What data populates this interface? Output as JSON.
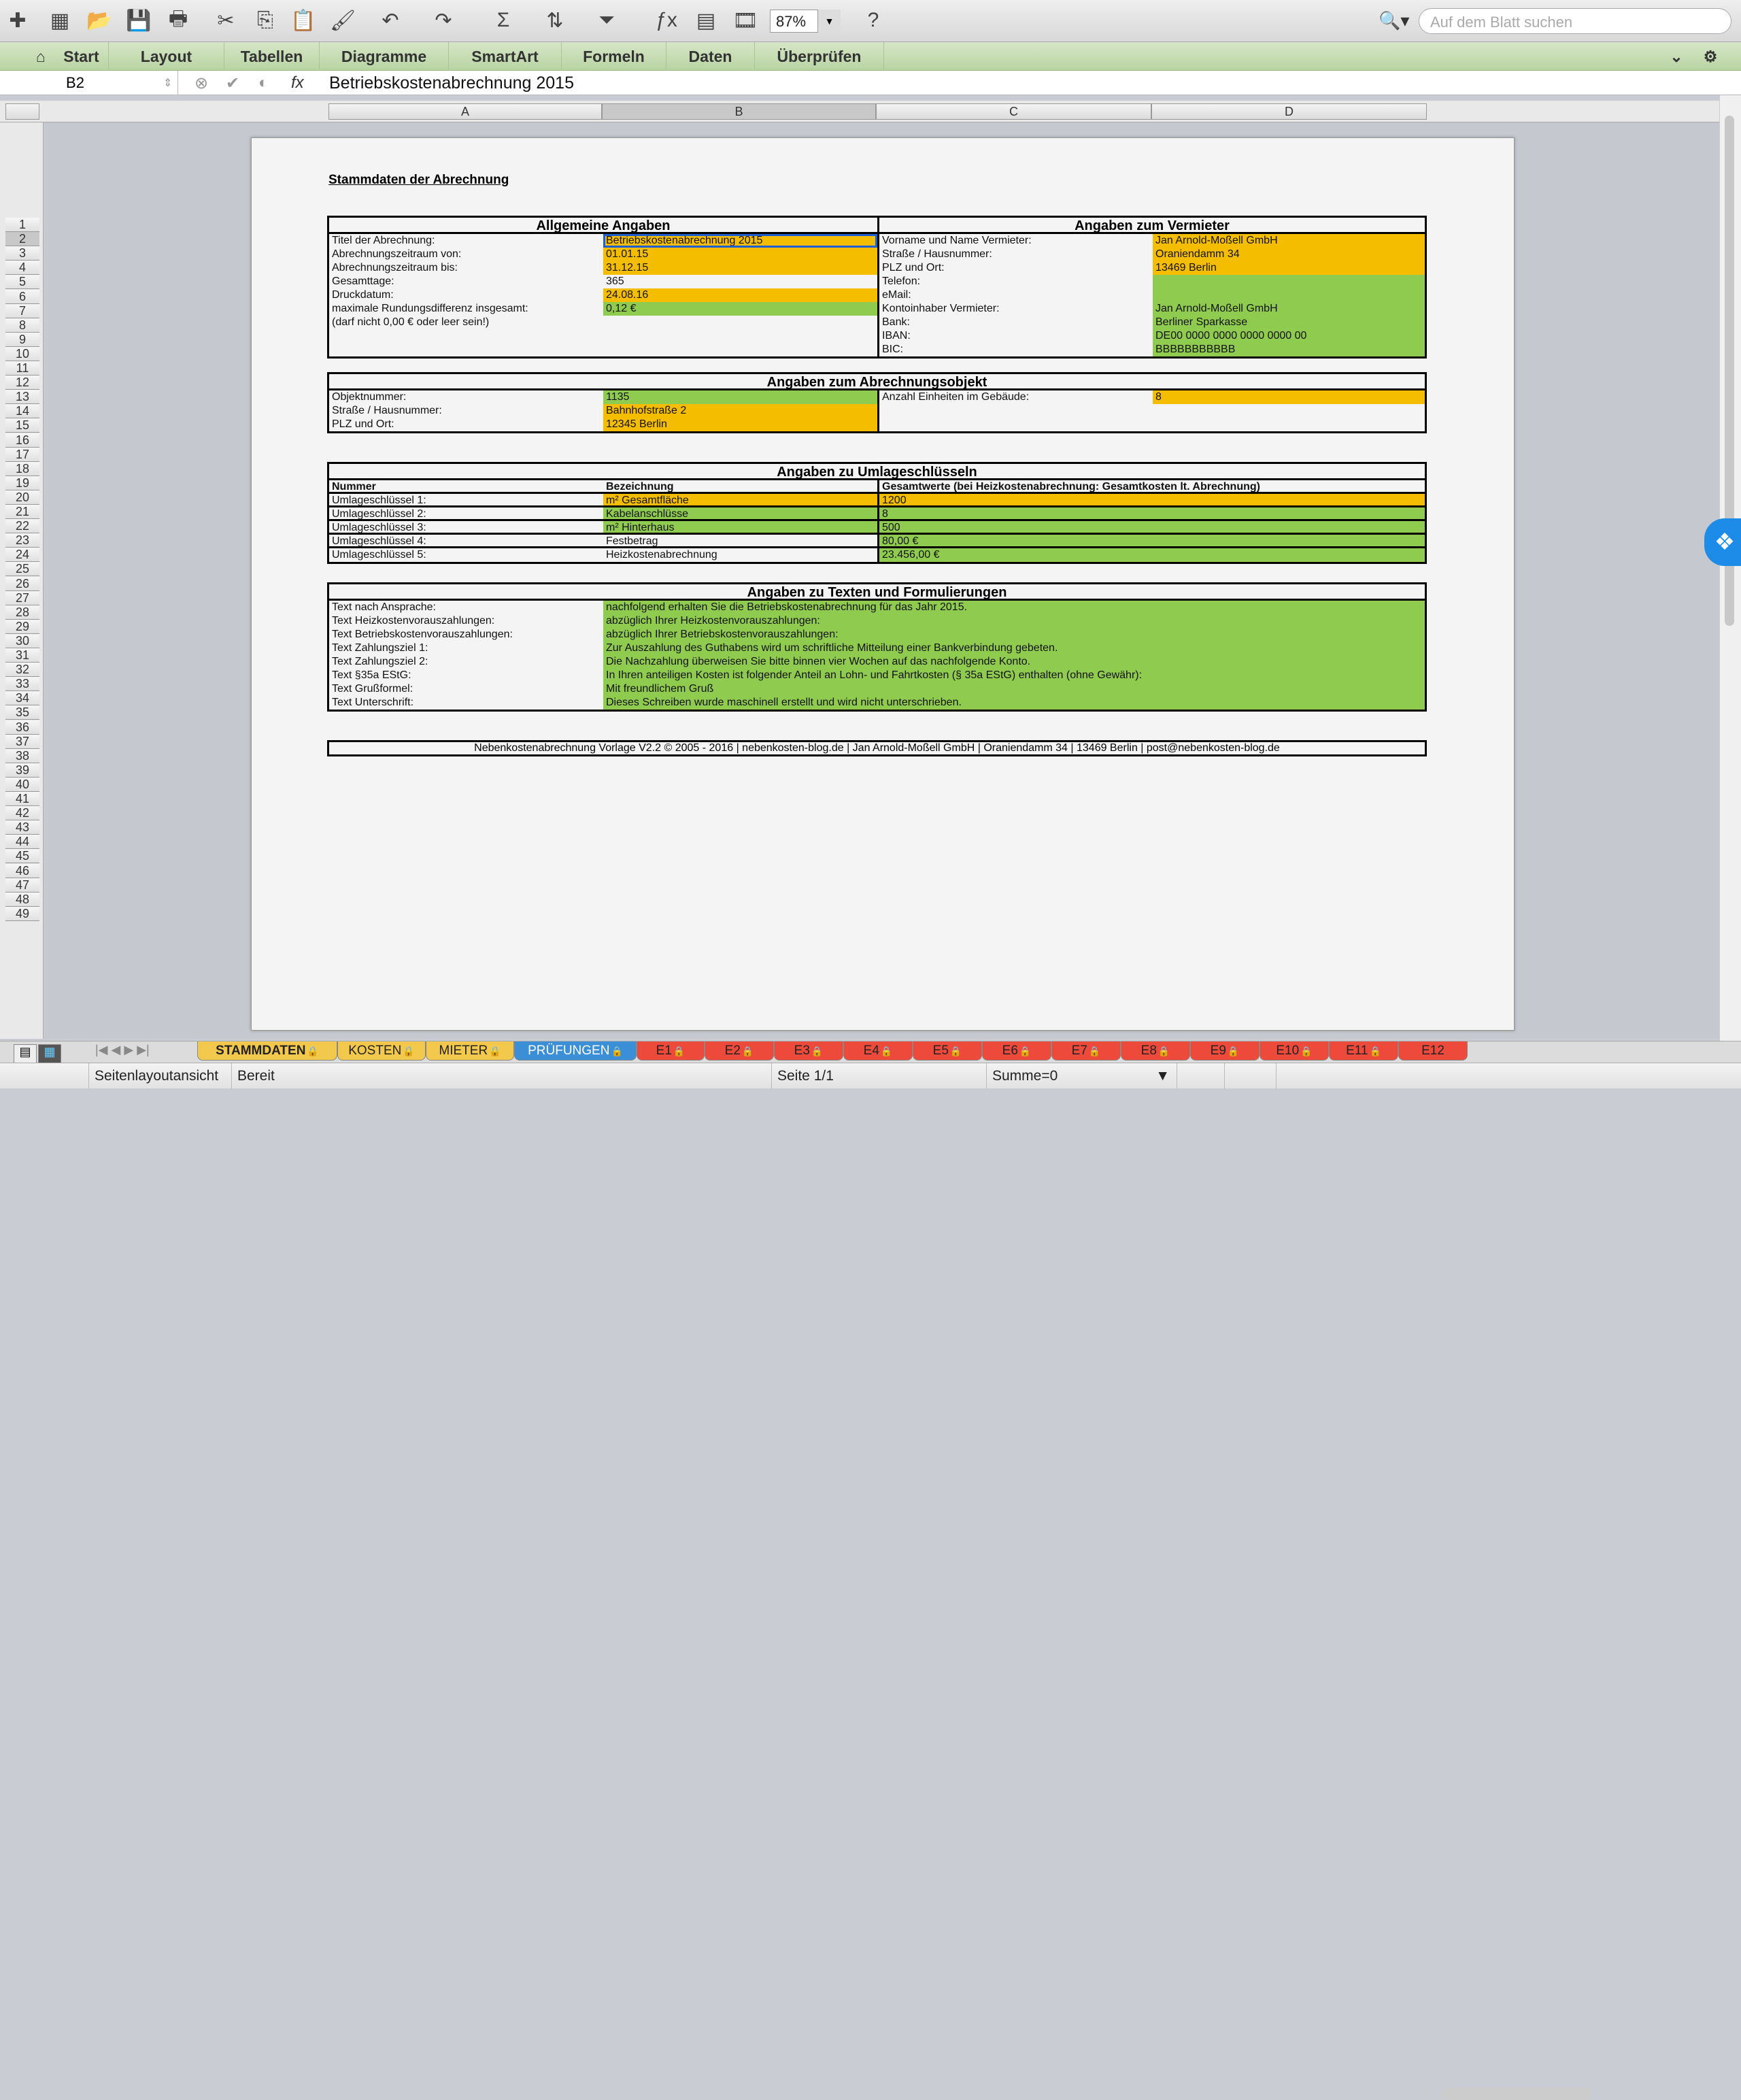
{
  "toolbar": {
    "icons": [
      "new-icon",
      "gallery-icon",
      "open-icon",
      "save-icon",
      "print-icon",
      "cut-icon",
      "copy-icon",
      "paste-icon",
      "format-painter-icon",
      "undo-icon",
      "redo-icon",
      "autosum-icon",
      "sort-icon",
      "filter-icon",
      "function-icon",
      "formula-builder-icon",
      "media-icon",
      "help-icon"
    ],
    "zoom": "87%",
    "search_placeholder": "Auf dem Blatt suchen"
  },
  "ribbon": {
    "tabs": [
      "Start",
      "Layout",
      "Tabellen",
      "Diagramme",
      "SmartArt",
      "Formeln",
      "Daten",
      "Überprüfen"
    ]
  },
  "formula_bar": {
    "cell_ref": "B2",
    "value": "Betriebskostenabrechnung 2015",
    "fx": "fx"
  },
  "columns": [
    "A",
    "B",
    "C",
    "D"
  ],
  "row_numbers": [
    1,
    2,
    3,
    4,
    5,
    6,
    7,
    8,
    9,
    10,
    11,
    12,
    13,
    14,
    15,
    16,
    17,
    18,
    19,
    20,
    21,
    22,
    23,
    24,
    25,
    26,
    27,
    28,
    29,
    30,
    31,
    32,
    33,
    34,
    35,
    36,
    37,
    38,
    39,
    40,
    41,
    42,
    43,
    44,
    45,
    46,
    47,
    48,
    49
  ],
  "colors": {
    "orange": "#f5bd00",
    "green": "#8fcb4e",
    "selection": "#1f5fd0"
  },
  "sheet": {
    "title": "Stammdaten der Abrechnung",
    "sections": [
      {
        "heading_left": "Allgemeine Angaben",
        "heading_right": "Angaben zum Vermieter",
        "rows": [
          [
            {
              "t": "Titel der Abrechnung:"
            },
            {
              "t": "Betriebskostenabrechnung 2015",
              "f": "orange",
              "sel": true
            },
            {
              "t": "Vorname und Name Vermieter:"
            },
            {
              "t": "Jan Arnold-Moßell GmbH",
              "f": "orange"
            }
          ],
          [
            {
              "t": "Abrechnungszeitraum von:"
            },
            {
              "t": "01.01.15",
              "f": "orange"
            },
            {
              "t": "Straße / Hausnummer:"
            },
            {
              "t": "Oraniendamm 34",
              "f": "orange"
            }
          ],
          [
            {
              "t": "Abrechnungszeitraum bis:"
            },
            {
              "t": "31.12.15",
              "f": "orange"
            },
            {
              "t": "PLZ und Ort:"
            },
            {
              "t": "13469 Berlin",
              "f": "orange"
            }
          ],
          [
            {
              "t": "Gesamttage:"
            },
            {
              "t": "365"
            },
            {
              "t": "Telefon:"
            },
            {
              "t": "",
              "f": "green"
            }
          ],
          [
            {
              "t": "Druckdatum:"
            },
            {
              "t": "24.08.16",
              "f": "orange"
            },
            {
              "t": "eMail:"
            },
            {
              "t": "",
              "f": "green"
            }
          ],
          [
            {
              "t": "maximale Rundungsdifferenz insgesamt:"
            },
            {
              "t": "0,12 €",
              "f": "green"
            },
            {
              "t": "Kontoinhaber Vermieter:"
            },
            {
              "t": "Jan Arnold-Moßell GmbH",
              "f": "green"
            }
          ],
          [
            {
              "t": "(darf nicht 0,00 € oder leer sein!)"
            },
            {
              "t": ""
            },
            {
              "t": "Bank:"
            },
            {
              "t": "Berliner Sparkasse",
              "f": "green"
            }
          ],
          [
            {
              "t": ""
            },
            {
              "t": ""
            },
            {
              "t": "IBAN:"
            },
            {
              "t": "DE00 0000 0000 0000 0000 00",
              "f": "green"
            }
          ],
          [
            {
              "t": ""
            },
            {
              "t": ""
            },
            {
              "t": "BIC:"
            },
            {
              "t": "BBBBBBBBBBB",
              "f": "green"
            }
          ]
        ]
      },
      {
        "heading": "Angaben zum Abrechnungsobjekt",
        "rows": [
          [
            {
              "t": "Objektnummer:"
            },
            {
              "t": "1135",
              "f": "green"
            },
            {
              "t": "Anzahl Einheiten im Gebäude:"
            },
            {
              "t": "8",
              "f": "orange"
            }
          ],
          [
            {
              "t": "Straße / Hausnummer:"
            },
            {
              "t": "Bahnhofstraße 2",
              "f": "orange"
            },
            {
              "t": ""
            },
            {
              "t": ""
            }
          ],
          [
            {
              "t": "PLZ und Ort:"
            },
            {
              "t": "12345 Berlin",
              "f": "orange"
            },
            {
              "t": ""
            },
            {
              "t": ""
            }
          ]
        ]
      },
      {
        "heading": "Angaben zu Umlageschlüsseln",
        "rows": [
          [
            {
              "t": "Nummer",
              "b": true
            },
            {
              "t": "Bezeichnung",
              "b": true
            },
            {
              "t": "Gesamtwerte (bei Heizkostenabrechnung: Gesamtkosten lt. Abrechnung)",
              "b": true,
              "span": 2
            }
          ],
          [
            {
              "t": "Umlageschlüssel 1:"
            },
            {
              "t": "m² Gesamtfläche",
              "f": "orange"
            },
            {
              "t": "1200",
              "f": "orange",
              "span": 2
            }
          ],
          [
            {
              "t": "Umlageschlüssel 2:"
            },
            {
              "t": "Kabelanschlüsse",
              "f": "green"
            },
            {
              "t": "8",
              "f": "green",
              "span": 2
            }
          ],
          [
            {
              "t": "Umlageschlüssel 3:"
            },
            {
              "t": "m² Hinterhaus",
              "f": "green"
            },
            {
              "t": "500",
              "f": "green",
              "span": 2
            }
          ],
          [
            {
              "t": "Umlageschlüssel 4:"
            },
            {
              "t": "Festbetrag"
            },
            {
              "t": "80,00 €",
              "f": "green",
              "span": 2
            }
          ],
          [
            {
              "t": "Umlageschlüssel 5:"
            },
            {
              "t": "Heizkostenabrechnung"
            },
            {
              "t": "23.456,00 €",
              "f": "green",
              "span": 2
            }
          ]
        ]
      },
      {
        "heading": "Angaben zu Texten und Formulierungen",
        "rows": [
          [
            {
              "t": "Text nach Ansprache:"
            },
            {
              "t": "nachfolgend erhalten Sie die Betriebskostenabrechnung für das Jahr 2015.",
              "f": "green",
              "span": 3
            }
          ],
          [
            {
              "t": "Text Heizkostenvorauszahlungen:"
            },
            {
              "t": "abzüglich Ihrer Heizkostenvorauszahlungen:",
              "f": "green",
              "span": 3
            }
          ],
          [
            {
              "t": "Text Betriebskostenvorauszahlungen:"
            },
            {
              "t": "abzüglich Ihrer Betriebskostenvorauszahlungen:",
              "f": "green",
              "span": 3
            }
          ],
          [
            {
              "t": "Text Zahlungsziel 1:"
            },
            {
              "t": "Zur Auszahlung des Guthabens wird um schriftliche Mitteilung einer Bankverbindung gebeten.",
              "f": "green",
              "span": 3
            }
          ],
          [
            {
              "t": "Text Zahlungsziel 2:"
            },
            {
              "t": "Die Nachzahlung überweisen Sie bitte binnen vier Wochen auf das nachfolgende Konto.",
              "f": "green",
              "span": 3
            }
          ],
          [
            {
              "t": "Text §35a EStG:"
            },
            {
              "t": "In Ihren anteiligen Kosten ist folgender Anteil an Lohn- und Fahrtkosten (§ 35a EStG) enthalten (ohne Gewähr):",
              "f": "green",
              "span": 3
            }
          ],
          [
            {
              "t": "Text Grußformel:"
            },
            {
              "t": "Mit freundlichem Gruß",
              "f": "green",
              "span": 3
            }
          ],
          [
            {
              "t": "Text Unterschrift:"
            },
            {
              "t": "Dieses Schreiben wurde maschinell erstellt und wird nicht unterschrieben.",
              "f": "green",
              "span": 3
            }
          ]
        ]
      }
    ],
    "footer": "Nebenkostenabrechnung Vorlage V2.2 © 2005 - 2016 | nebenkosten-blog.de | Jan Arnold-Moßell GmbH | Oraniendamm 34 | 13469 Berlin | post@nebenkosten-blog.de"
  },
  "sheet_tabs": [
    {
      "label": "STAMMDATEN",
      "color": "#f2c94c",
      "locked": true,
      "active": true
    },
    {
      "label": "KOSTEN",
      "color": "#f2c94c",
      "locked": true
    },
    {
      "label": "MIETER",
      "color": "#f2c94c",
      "locked": true
    },
    {
      "label": "PRÜFUNGEN",
      "color": "#3a8fd6",
      "locked": true
    },
    {
      "label": "E1",
      "color": "#ee4a3c",
      "locked": true
    },
    {
      "label": "E2",
      "color": "#ee4a3c",
      "locked": true
    },
    {
      "label": "E3",
      "color": "#ee4a3c",
      "locked": true
    },
    {
      "label": "E4",
      "color": "#ee4a3c",
      "locked": true
    },
    {
      "label": "E5",
      "color": "#ee4a3c",
      "locked": true
    },
    {
      "label": "E6",
      "color": "#ee4a3c",
      "locked": true
    },
    {
      "label": "E7",
      "color": "#ee4a3c",
      "locked": true
    },
    {
      "label": "E8",
      "color": "#ee4a3c",
      "locked": true
    },
    {
      "label": "E9",
      "color": "#ee4a3c",
      "locked": true
    },
    {
      "label": "E10",
      "color": "#ee4a3c",
      "locked": true
    },
    {
      "label": "E11",
      "color": "#ee4a3c",
      "locked": true
    },
    {
      "label": "E12",
      "color": "#ee4a3c",
      "locked": false
    }
  ],
  "status": {
    "view": "Seitenlayoutansicht",
    "state": "Bereit",
    "page": "Seite 1/1",
    "sum": "Summe=0"
  }
}
